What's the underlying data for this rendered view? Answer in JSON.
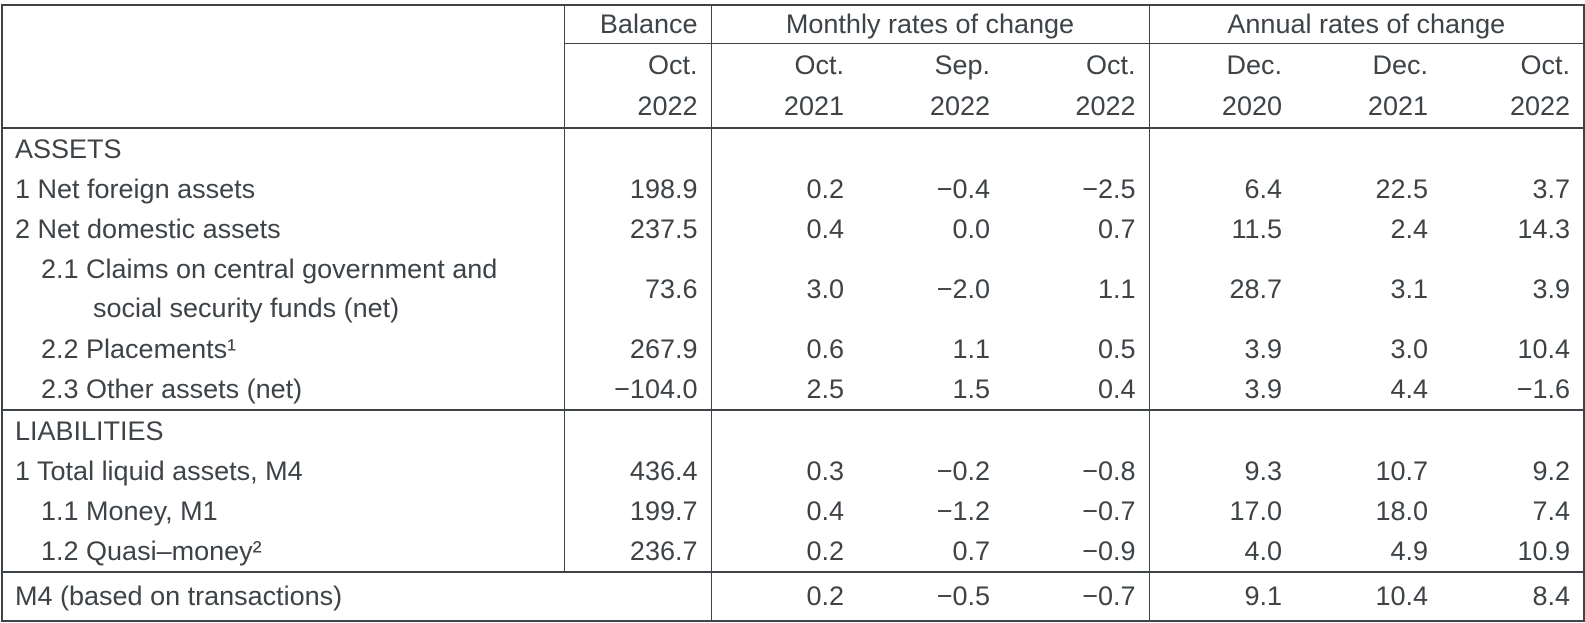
{
  "table": {
    "header": {
      "balance_title": "Balance",
      "monthly_title": "Monthly rates of change",
      "annual_title": "Annual rates of change",
      "balance_col": {
        "month": "Oct.",
        "year": "2022"
      },
      "monthly_cols": [
        {
          "month": "Oct.",
          "year": "2021"
        },
        {
          "month": "Sep.",
          "year": "2022"
        },
        {
          "month": "Oct.",
          "year": "2022"
        }
      ],
      "annual_cols": [
        {
          "month": "Dec.",
          "year": "2020"
        },
        {
          "month": "Dec.",
          "year": "2021"
        },
        {
          "month": "Oct.",
          "year": "2022"
        }
      ]
    },
    "assets": {
      "section_title": "ASSETS",
      "rows": [
        {
          "label": "1 Net foreign assets",
          "balance": "198.9",
          "monthly": [
            "0.2",
            "−0.4",
            "−2.5"
          ],
          "annual": [
            "6.4",
            "22.5",
            "3.7"
          ]
        },
        {
          "label": "2 Net domestic assets",
          "balance": "237.5",
          "monthly": [
            "0.4",
            "0.0",
            "0.7"
          ],
          "annual": [
            "11.5",
            "2.4",
            "14.3"
          ]
        },
        {
          "label": "2.1 Claims on central government and",
          "label2": "social security funds (net)",
          "balance": "73.6",
          "monthly": [
            "3.0",
            "−2.0",
            "1.1"
          ],
          "annual": [
            "28.7",
            "3.1",
            "3.9"
          ]
        },
        {
          "label": "2.2 Placements¹",
          "balance": "267.9",
          "monthly": [
            "0.6",
            "1.1",
            "0.5"
          ],
          "annual": [
            "3.9",
            "3.0",
            "10.4"
          ]
        },
        {
          "label": "2.3 Other assets (net)",
          "balance": "−104.0",
          "monthly": [
            "2.5",
            "1.5",
            "0.4"
          ],
          "annual": [
            "3.9",
            "4.4",
            "−1.6"
          ]
        }
      ]
    },
    "liabilities": {
      "section_title": "LIABILITIES",
      "rows": [
        {
          "label": "1 Total liquid assets, M4",
          "balance": "436.4",
          "monthly": [
            "0.3",
            "−0.2",
            "−0.8"
          ],
          "annual": [
            "9.3",
            "10.7",
            "9.2"
          ]
        },
        {
          "label": "1.1 Money, M1",
          "balance": "199.7",
          "monthly": [
            "0.4",
            "−1.2",
            "−0.7"
          ],
          "annual": [
            "17.0",
            "18.0",
            "7.4"
          ]
        },
        {
          "label": "1.2 Quasi–money²",
          "balance": "236.7",
          "monthly": [
            "0.2",
            "0.7",
            "−0.9"
          ],
          "annual": [
            "4.0",
            "4.9",
            "10.9"
          ]
        }
      ]
    },
    "footer": {
      "label": "M4 (based on transactions)",
      "monthly": [
        "0.2",
        "−0.5",
        "−0.7"
      ],
      "annual": [
        "9.1",
        "10.4",
        "8.4"
      ]
    },
    "colors": {
      "text": "#3e4347",
      "border": "#3e4347",
      "background": "#ffffff"
    }
  }
}
